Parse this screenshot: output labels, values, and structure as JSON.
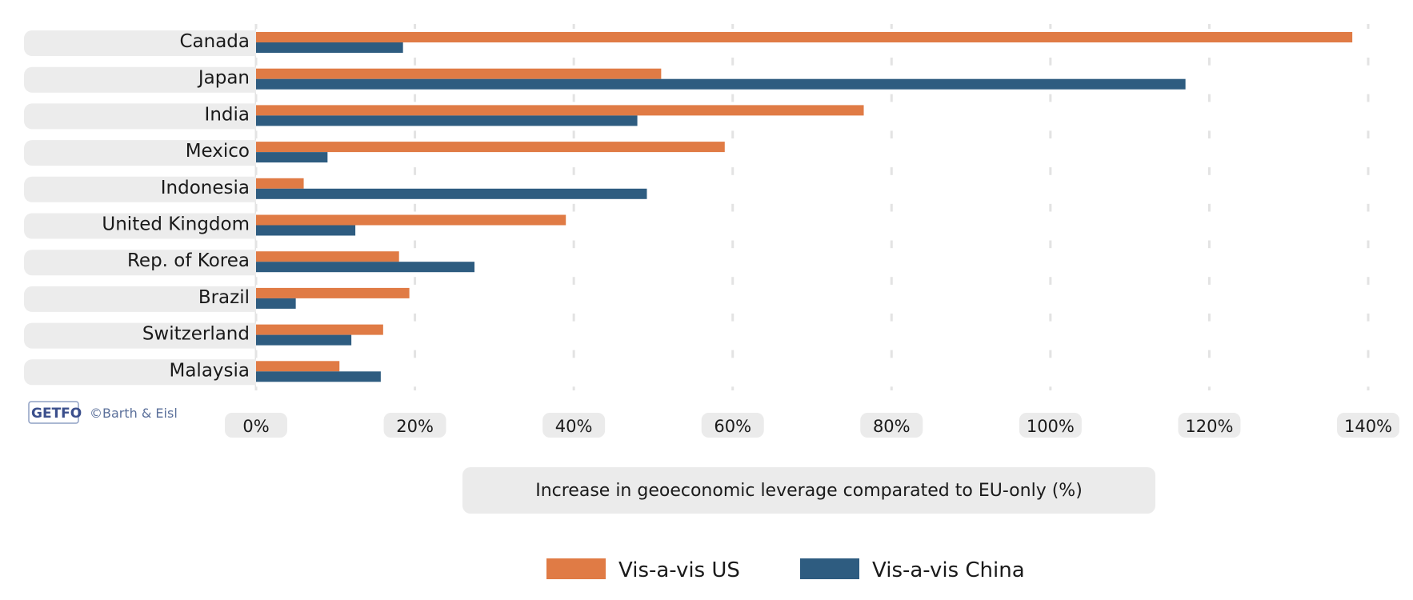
{
  "chart_data": {
    "type": "bar",
    "orientation": "horizontal",
    "categories": [
      "Canada",
      "Japan",
      "India",
      "Mexico",
      "Indonesia",
      "United Kingdom",
      "Rep. of Korea",
      "Brazil",
      "Switzerland",
      "Malaysia"
    ],
    "series": [
      {
        "name": "Vis-a-vis US",
        "color": "#e07b45",
        "values": [
          138,
          51,
          76.5,
          59,
          6,
          39,
          18,
          19.3,
          16,
          10.5
        ]
      },
      {
        "name": "Vis-a-vis China",
        "color": "#2e5c80",
        "values": [
          18.5,
          117,
          48,
          9,
          49.2,
          12.5,
          27.5,
          5,
          12,
          15.7
        ]
      }
    ],
    "xticks": [
      "0%",
      "20%",
      "40%",
      "60%",
      "80%",
      "100%",
      "120%",
      "140%"
    ],
    "xlim": [
      0,
      140
    ],
    "xlabel": "Increase in geoeconomic leverage comparated to EU-only (%)",
    "grid": true,
    "legend_position": "bottom"
  },
  "branding": {
    "logo": "GETFO",
    "credit": "©Barth & Eisl"
  }
}
